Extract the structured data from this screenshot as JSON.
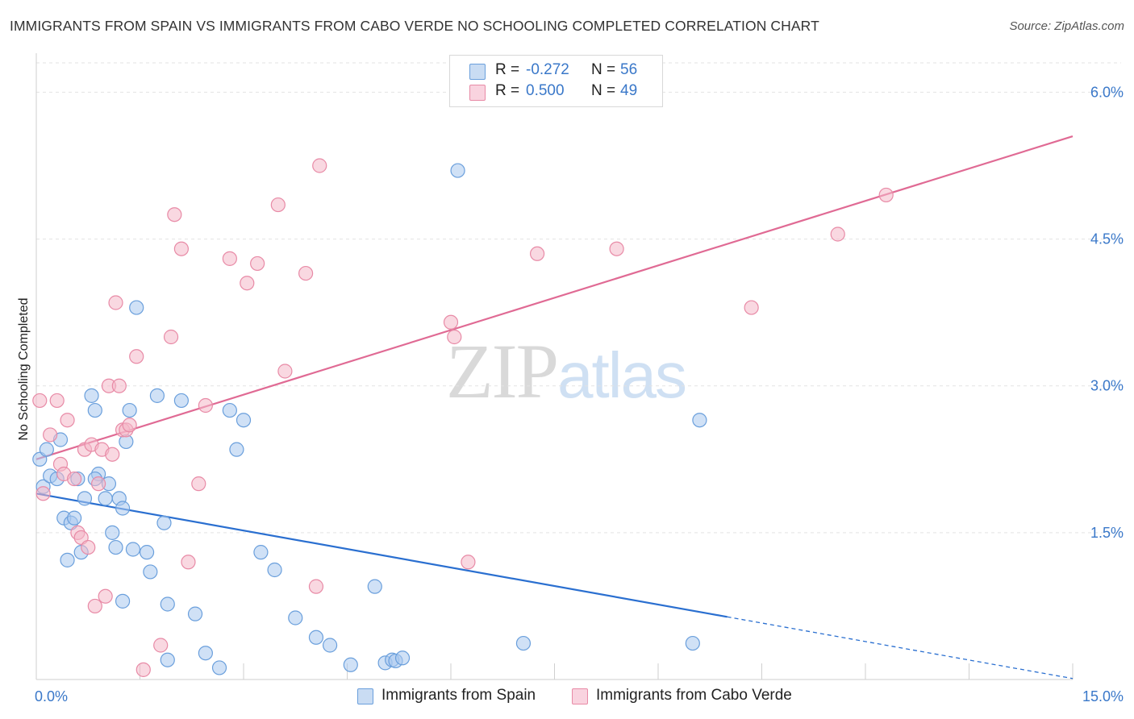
{
  "header": {
    "title": "IMMIGRANTS FROM SPAIN VS IMMIGRANTS FROM CABO VERDE NO SCHOOLING COMPLETED CORRELATION CHART",
    "source": "Source: ZipAtlas.com"
  },
  "legend": {
    "rows": [
      {
        "r_label": "R =",
        "r_value": "-0.272",
        "n_label": "N =",
        "n_value": "56",
        "color": "#a9c8ee"
      },
      {
        "r_label": "R =",
        "r_value": "0.500",
        "n_label": "N =",
        "n_value": "49",
        "color": "#f4b8c9"
      }
    ]
  },
  "watermark": {
    "zip": "ZIP",
    "atlas": "atlas"
  },
  "bottom_legend": [
    {
      "label": "Immigrants from Spain",
      "color": "#a9c8ee"
    },
    {
      "label": "Immigrants from Cabo Verde",
      "color": "#f4b8c9"
    }
  ],
  "chart_data": {
    "type": "scatter",
    "title": "IMMIGRANTS FROM SPAIN VS IMMIGRANTS FROM CABO VERDE NO SCHOOLING COMPLETED CORRELATION CHART",
    "xlabel": "",
    "ylabel": "No Schooling Completed",
    "xlim": [
      0,
      15
    ],
    "ylim": [
      0,
      6.3
    ],
    "x_tick_labels": [
      "0.0%",
      "15.0%"
    ],
    "y_ticks": [
      1.5,
      3.0,
      4.5,
      6.0
    ],
    "y_tick_labels": [
      "1.5%",
      "3.0%",
      "4.5%",
      "6.0%"
    ],
    "grid": true,
    "colors": {
      "spain_fill": "#a9c8ee",
      "spain_stroke": "#6a9fdc",
      "spain_line": "#2a6fd0",
      "cabo_fill": "#f4b8c9",
      "cabo_stroke": "#e88aa6",
      "cabo_line": "#e06a94",
      "tick_label": "#3a78c9"
    },
    "series": [
      {
        "name": "Immigrants from Spain",
        "trend": {
          "x0": 0.0,
          "y0": 1.9,
          "x1": 10.0,
          "y1": 0.64,
          "dash_to_x": 15.0
        },
        "points": [
          [
            0.05,
            2.25
          ],
          [
            0.1,
            1.97
          ],
          [
            0.15,
            2.35
          ],
          [
            0.2,
            2.08
          ],
          [
            0.3,
            2.05
          ],
          [
            0.35,
            2.45
          ],
          [
            0.4,
            1.65
          ],
          [
            0.5,
            1.6
          ],
          [
            0.55,
            1.65
          ],
          [
            0.6,
            2.05
          ],
          [
            0.45,
            1.22
          ],
          [
            0.65,
            1.3
          ],
          [
            0.7,
            1.85
          ],
          [
            0.8,
            2.9
          ],
          [
            0.85,
            2.75
          ],
          [
            0.9,
            2.1
          ],
          [
            1.0,
            1.85
          ],
          [
            1.05,
            2.0
          ],
          [
            1.1,
            1.5
          ],
          [
            1.15,
            1.35
          ],
          [
            1.2,
            1.85
          ],
          [
            1.25,
            1.75
          ],
          [
            1.3,
            2.43
          ],
          [
            1.35,
            2.75
          ],
          [
            1.4,
            1.33
          ],
          [
            1.45,
            3.8
          ],
          [
            1.6,
            1.3
          ],
          [
            1.65,
            1.1
          ],
          [
            1.75,
            2.9
          ],
          [
            1.85,
            1.6
          ],
          [
            1.9,
            0.77
          ],
          [
            2.1,
            2.85
          ],
          [
            2.3,
            0.67
          ],
          [
            2.45,
            0.27
          ],
          [
            2.65,
            0.12
          ],
          [
            2.8,
            2.75
          ],
          [
            2.9,
            2.35
          ],
          [
            3.0,
            2.65
          ],
          [
            3.25,
            1.3
          ],
          [
            3.45,
            1.12
          ],
          [
            3.75,
            0.63
          ],
          [
            4.05,
            0.43
          ],
          [
            4.25,
            0.35
          ],
          [
            4.55,
            0.15
          ],
          [
            4.9,
            0.95
          ],
          [
            5.05,
            0.17
          ],
          [
            5.15,
            0.2
          ],
          [
            5.2,
            0.19
          ],
          [
            5.3,
            0.22
          ],
          [
            6.1,
            5.2
          ],
          [
            7.05,
            0.37
          ],
          [
            9.5,
            0.37
          ],
          [
            9.6,
            2.65
          ],
          [
            1.25,
            0.8
          ],
          [
            1.9,
            0.2
          ],
          [
            0.85,
            2.05
          ]
        ]
      },
      {
        "name": "Immigrants from Cabo Verde",
        "trend": {
          "x0": 0.0,
          "y0": 2.25,
          "x1": 15.0,
          "y1": 5.55
        },
        "points": [
          [
            0.05,
            2.85
          ],
          [
            0.1,
            1.9
          ],
          [
            0.2,
            2.5
          ],
          [
            0.3,
            2.85
          ],
          [
            0.35,
            2.2
          ],
          [
            0.4,
            2.1
          ],
          [
            0.45,
            2.65
          ],
          [
            0.55,
            2.05
          ],
          [
            0.6,
            1.5
          ],
          [
            0.65,
            1.45
          ],
          [
            0.7,
            2.35
          ],
          [
            0.75,
            1.35
          ],
          [
            0.8,
            2.4
          ],
          [
            0.85,
            0.75
          ],
          [
            0.9,
            2.0
          ],
          [
            0.95,
            2.35
          ],
          [
            1.0,
            0.85
          ],
          [
            1.05,
            3.0
          ],
          [
            1.1,
            2.3
          ],
          [
            1.15,
            3.85
          ],
          [
            1.2,
            3.0
          ],
          [
            1.25,
            2.55
          ],
          [
            1.3,
            2.55
          ],
          [
            1.35,
            2.6
          ],
          [
            1.45,
            3.3
          ],
          [
            1.55,
            0.1
          ],
          [
            1.8,
            0.35
          ],
          [
            1.95,
            3.5
          ],
          [
            2.0,
            4.75
          ],
          [
            2.1,
            4.4
          ],
          [
            2.2,
            1.2
          ],
          [
            2.35,
            2.0
          ],
          [
            2.45,
            2.8
          ],
          [
            2.8,
            4.3
          ],
          [
            3.05,
            4.05
          ],
          [
            3.2,
            4.25
          ],
          [
            3.5,
            4.85
          ],
          [
            3.6,
            3.15
          ],
          [
            3.9,
            4.15
          ],
          [
            4.05,
            0.95
          ],
          [
            4.1,
            5.25
          ],
          [
            6.0,
            3.65
          ],
          [
            6.05,
            3.5
          ],
          [
            6.25,
            1.2
          ],
          [
            7.25,
            4.35
          ],
          [
            8.4,
            4.4
          ],
          [
            10.35,
            3.8
          ],
          [
            11.6,
            4.55
          ],
          [
            12.3,
            4.95
          ]
        ]
      }
    ]
  }
}
